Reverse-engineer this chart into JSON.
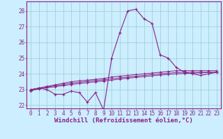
{
  "xlabel": "Windchill (Refroidissement éolien,°C)",
  "bg_color": "#cceeff",
  "grid_color": "#99cccc",
  "line_color": "#882288",
  "xlim": [
    -0.5,
    23.5
  ],
  "ylim": [
    21.8,
    28.6
  ],
  "yticks": [
    22,
    23,
    24,
    25,
    26,
    27,
    28
  ],
  "xticks": [
    0,
    1,
    2,
    3,
    4,
    5,
    6,
    7,
    8,
    9,
    10,
    11,
    12,
    13,
    14,
    15,
    16,
    17,
    18,
    19,
    20,
    21,
    22,
    23
  ],
  "series": {
    "line1_x": [
      0,
      1,
      2,
      3,
      4,
      5,
      6,
      7,
      8,
      9,
      10,
      11,
      12,
      13,
      14,
      15,
      16,
      17,
      18,
      19,
      20,
      21,
      22,
      23
    ],
    "line1_y": [
      22.9,
      23.1,
      23.0,
      22.7,
      22.7,
      22.9,
      22.8,
      22.2,
      22.8,
      21.7,
      25.0,
      26.6,
      28.0,
      28.1,
      27.5,
      27.2,
      25.2,
      25.0,
      24.4,
      24.1,
      24.0,
      23.9,
      24.0,
      24.1
    ],
    "line2_x": [
      0,
      1,
      2,
      3,
      4,
      5,
      6,
      7,
      8,
      9,
      10,
      11,
      12,
      13,
      14,
      15,
      16,
      17,
      18,
      19,
      20,
      21,
      22,
      23
    ],
    "line2_y": [
      23.0,
      23.1,
      23.2,
      23.3,
      23.4,
      23.5,
      23.55,
      23.6,
      23.65,
      23.7,
      23.8,
      23.85,
      23.9,
      23.95,
      24.0,
      24.05,
      24.1,
      24.15,
      24.2,
      24.2,
      24.2,
      24.2,
      24.2,
      24.2
    ],
    "line3_x": [
      0,
      1,
      2,
      3,
      4,
      5,
      6,
      7,
      8,
      9,
      10,
      11,
      12,
      13,
      14,
      15,
      16,
      17,
      18,
      19,
      20,
      21,
      22,
      23
    ],
    "line3_y": [
      23.0,
      23.08,
      23.16,
      23.24,
      23.32,
      23.4,
      23.46,
      23.52,
      23.57,
      23.62,
      23.68,
      23.74,
      23.8,
      23.85,
      23.9,
      23.95,
      24.0,
      24.04,
      24.08,
      24.1,
      24.1,
      24.1,
      24.1,
      24.1
    ],
    "line4_x": [
      0,
      1,
      2,
      3,
      4,
      5,
      6,
      7,
      8,
      9,
      10,
      11,
      12,
      13,
      14,
      15,
      16,
      17,
      18,
      19,
      20,
      21,
      22,
      23
    ],
    "line4_y": [
      22.95,
      23.03,
      23.11,
      23.18,
      23.25,
      23.32,
      23.38,
      23.44,
      23.49,
      23.54,
      23.6,
      23.66,
      23.72,
      23.77,
      23.82,
      23.87,
      23.92,
      23.96,
      24.0,
      24.02,
      24.04,
      24.06,
      24.08,
      24.1
    ]
  },
  "xlabel_fontsize": 6.5,
  "tick_fontsize": 5.5
}
